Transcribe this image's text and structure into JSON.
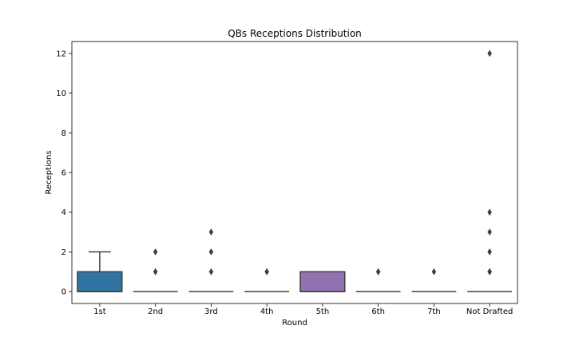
{
  "chart_data": {
    "type": "boxplot",
    "title": "QBs Receptions Distribution",
    "xlabel": "Round",
    "ylabel": "Receptions",
    "ylim": [
      -0.6,
      12.6
    ],
    "yticks": [
      0,
      2,
      4,
      6,
      8,
      10,
      12
    ],
    "grid": false,
    "categories": [
      "1st",
      "2nd",
      "3rd",
      "4th",
      "5th",
      "6th",
      "7th",
      "Not Drafted"
    ],
    "boxes": [
      {
        "category": "1st",
        "q1": 0,
        "median": 0,
        "q3": 1,
        "whisker_low": 0,
        "whisker_high": 2,
        "outliers": [],
        "color": "#3274a1"
      },
      {
        "category": "2nd",
        "q1": 0,
        "median": 0,
        "q3": 0,
        "whisker_low": 0,
        "whisker_high": 0,
        "outliers": [
          1,
          1,
          2
        ],
        "color": "#e1812c"
      },
      {
        "category": "3rd",
        "q1": 0,
        "median": 0,
        "q3": 0,
        "whisker_low": 0,
        "whisker_high": 0,
        "outliers": [
          1,
          2,
          3
        ],
        "color": "#3a923a"
      },
      {
        "category": "4th",
        "q1": 0,
        "median": 0,
        "q3": 0,
        "whisker_low": 0,
        "whisker_high": 0,
        "outliers": [
          1,
          1
        ],
        "color": "#c03d3e"
      },
      {
        "category": "5th",
        "q1": 0,
        "median": 0,
        "q3": 1,
        "whisker_low": 0,
        "whisker_high": 1,
        "outliers": [],
        "color": "#9372b2"
      },
      {
        "category": "6th",
        "q1": 0,
        "median": 0,
        "q3": 0,
        "whisker_low": 0,
        "whisker_high": 0,
        "outliers": [
          1,
          1
        ],
        "color": "#845b53"
      },
      {
        "category": "7th",
        "q1": 0,
        "median": 0,
        "q3": 0,
        "whisker_low": 0,
        "whisker_high": 0,
        "outliers": [
          1
        ],
        "color": "#d684bd"
      },
      {
        "category": "Not Drafted",
        "q1": 0,
        "median": 0,
        "q3": 0,
        "whisker_low": 0,
        "whisker_high": 0,
        "outliers": [
          1,
          1,
          1,
          2,
          3,
          4,
          12
        ],
        "color": "#7f7f7f"
      }
    ]
  }
}
